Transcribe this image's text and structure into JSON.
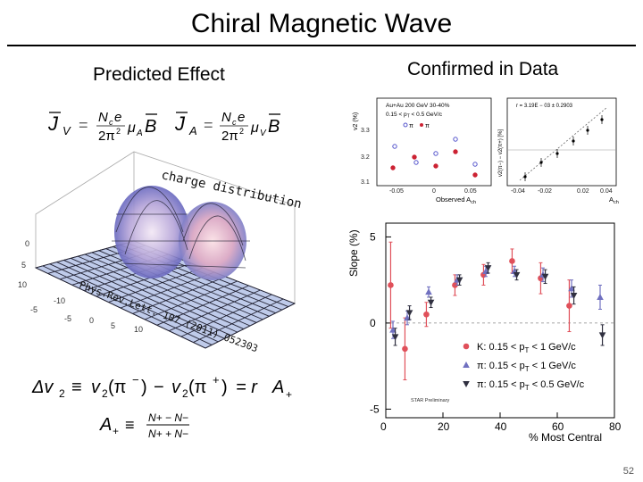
{
  "slide": {
    "title": "Chiral Magnetic Wave",
    "left_heading": "Predicted Effect",
    "right_heading": "Confirmed in Data",
    "slide_number": "52"
  },
  "left_panel": {
    "eq_jv": {
      "lhs": "J",
      "sub": "V",
      "num": "N",
      "num_sub": "c",
      "num_tail": "e",
      "den": "2π",
      "den_sup": "2",
      "mu": "μ",
      "mu_sub": "A",
      "rhs": "B"
    },
    "eq_ja": {
      "lhs": "J",
      "sub": "A",
      "num": "N",
      "num_sub": "c",
      "num_tail": "e",
      "den": "2π",
      "den_sup": "2",
      "mu": "μ",
      "mu_sub": "V",
      "rhs": "B"
    },
    "surface_label": "charge distribution",
    "citation": "Phys.Rev.Lett. 107 (2011) 052303",
    "axis_ticks_left": [
      "10",
      "5",
      "0",
      "-5",
      "-10"
    ],
    "axis_ticks_front": [
      "-10",
      "-5",
      "0",
      "5",
      "10"
    ],
    "eq_dv2": {
      "lhs": "Δv",
      "lhs_sub": "2",
      "mid1": "v",
      "mid1_sub": "2",
      "pi_minus": "(π",
      "sup_minus": "−",
      "close": ")",
      "minus": "−",
      "mid2": "v",
      "mid2_sub": "2",
      "pi_plus": "(π",
      "sup_plus": "+",
      "eq_r": "= r",
      "a": "A",
      "a_sub": "+"
    },
    "eq_aplus": {
      "lhs": "A",
      "lhs_sub": "+",
      "num": "N+ − N−",
      "den": "N+ + N−"
    }
  },
  "inset_left": {
    "legend_text": "Au+Au 200 GeV  30-40%",
    "legend_sub": "0.15 < p",
    "legend_sub2": "T",
    "legend_tail": " < 0.5 GeV/c",
    "legend_pi_minus": "π",
    "legend_pi_plus": "π",
    "ylabel": "v2 (%)",
    "xlabel": "Observed A",
    "xlabel_sub": "ch",
    "yticks": [
      "3.3",
      "3.2",
      "3.1"
    ],
    "xticks": [
      "-0.05",
      "0",
      "0.05"
    ]
  },
  "inset_right": {
    "fit_text": "r = 3.19E − 03 ± 0.2903",
    "ylabel": "v2(π−) − v2(π+) [%]",
    "xlabel": "A",
    "xlabel_sub": "ch",
    "xticks": [
      "-0.04",
      "-0.02",
      "0.02",
      "0.04"
    ]
  },
  "chart_data": {
    "type": "scatter",
    "ylabel": "Slope (%)",
    "xlabel": "% Most Central",
    "xlim": [
      0,
      80
    ],
    "ylim": [
      -5.5,
      5.8
    ],
    "xticks": [
      "0",
      "20",
      "40",
      "60",
      "80"
    ],
    "yticks": [
      "5",
      "0",
      "-5"
    ],
    "watermark": "STAR Preliminary",
    "series": [
      {
        "name_main": "K: 0.15 < p",
        "name_sub": "T",
        "name_tail": " < 1 GeV/c",
        "color": "#e0505a",
        "marker": "circle",
        "x": [
          2.5,
          7.5,
          15,
          25,
          35,
          45,
          55,
          65
        ],
        "y": [
          2.2,
          -1.5,
          0.5,
          2.2,
          2.8,
          3.6,
          2.6,
          1.0
        ],
        "err": [
          2.5,
          1.8,
          0.7,
          0.6,
          0.6,
          0.7,
          0.9,
          1.5
        ]
      },
      {
        "name_main": "π: 0.15 < p",
        "name_sub": "T",
        "name_tail": " < 1 GeV/c",
        "color": "#7070c0",
        "marker": "triangle-up",
        "x": [
          2.5,
          7.5,
          15,
          25,
          35,
          45,
          55,
          65,
          75
        ],
        "y": [
          -0.4,
          0.3,
          1.8,
          2.5,
          3.0,
          3.0,
          2.8,
          2.0,
          1.5
        ],
        "err": [
          0.5,
          0.4,
          0.3,
          0.3,
          0.3,
          0.3,
          0.4,
          0.5,
          0.7
        ]
      },
      {
        "name_main": "π: 0.15 < p",
        "name_sub": "T",
        "name_tail": " < 0.5 GeV/c",
        "color": "#303040",
        "marker": "triangle-down",
        "x": [
          2.5,
          7.5,
          15,
          25,
          35,
          45,
          55,
          65,
          75
        ],
        "y": [
          -0.8,
          0.6,
          1.2,
          2.5,
          3.2,
          2.8,
          2.7,
          1.6,
          -0.7
        ],
        "err": [
          0.5,
          0.4,
          0.3,
          0.3,
          0.3,
          0.3,
          0.4,
          0.5,
          0.6
        ]
      }
    ]
  }
}
